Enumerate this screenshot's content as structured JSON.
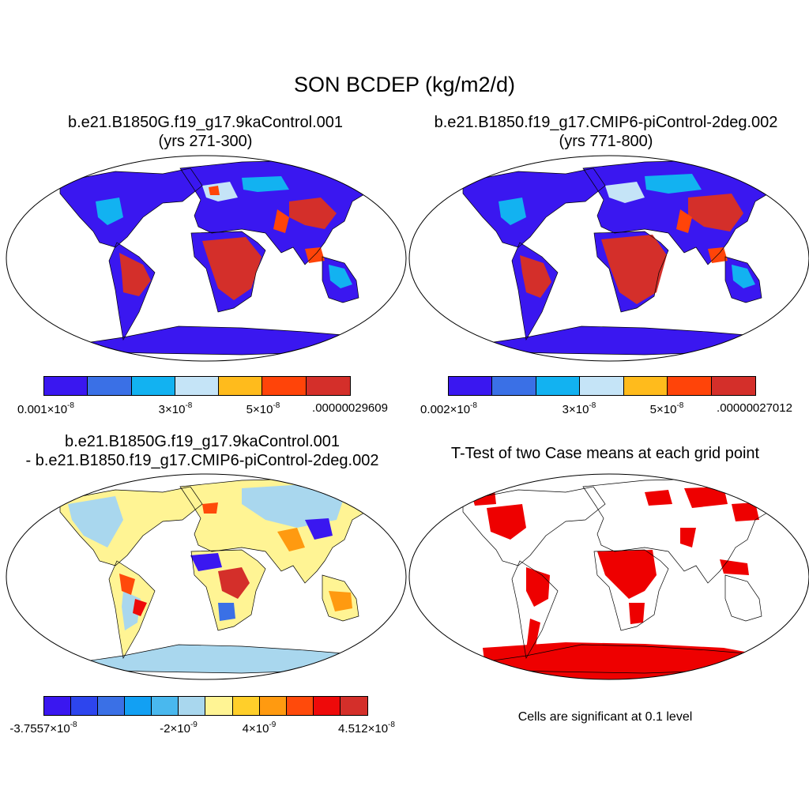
{
  "title": "SON BCDEP (kg/m2/d)",
  "panels": [
    {
      "title_line1": "b.e21.B1850G.f19_g17.9kaControl.001",
      "title_line2": "(yrs 271-300)",
      "colorbar": {
        "colors": [
          "#3a17f0",
          "#3a70e6",
          "#12b2f1",
          "#c5e4f7",
          "#ffbb1c",
          "#ff4409",
          "#d42f2a"
        ],
        "labels": [
          "0.001×10-8",
          "3×10-8",
          "5×10-8",
          ".00000029609"
        ]
      }
    },
    {
      "title_line1": "b.e21.B1850.f19_g17.CMIP6-piControl-2deg.002",
      "title_line2": "(yrs 771-800)",
      "colorbar": {
        "colors": [
          "#3a17f0",
          "#3a70e6",
          "#12b2f1",
          "#c5e4f7",
          "#ffbb1c",
          "#ff4409",
          "#d42f2a"
        ],
        "labels": [
          "0.002×10-8",
          "3×10-8",
          "5×10-8",
          ".00000027012"
        ]
      }
    },
    {
      "title_line1": "b.e21.B1850G.f19_g17.9kaControl.001",
      "title_line2": "- b.e21.B1850.f19_g17.CMIP6-piControl-2deg.002",
      "colorbar": {
        "colors": [
          "#3a17f0",
          "#2d45ee",
          "#3a70e6",
          "#12a0f3",
          "#49b8ee",
          "#a9d7ee",
          "#fff494",
          "#ffcf2a",
          "#ff9a10",
          "#ff4a0b",
          "#ee0a0a",
          "#d42f2a"
        ],
        "labels": [
          "-3.7557×10-8",
          "-2×10-9",
          "4×10-9",
          "4.512×10-8"
        ]
      }
    },
    {
      "title_line1": "T-Test of two Case means at each grid point",
      "note": "Cells are significant at 0.1 level",
      "significance_color": "#ee0000"
    }
  ]
}
